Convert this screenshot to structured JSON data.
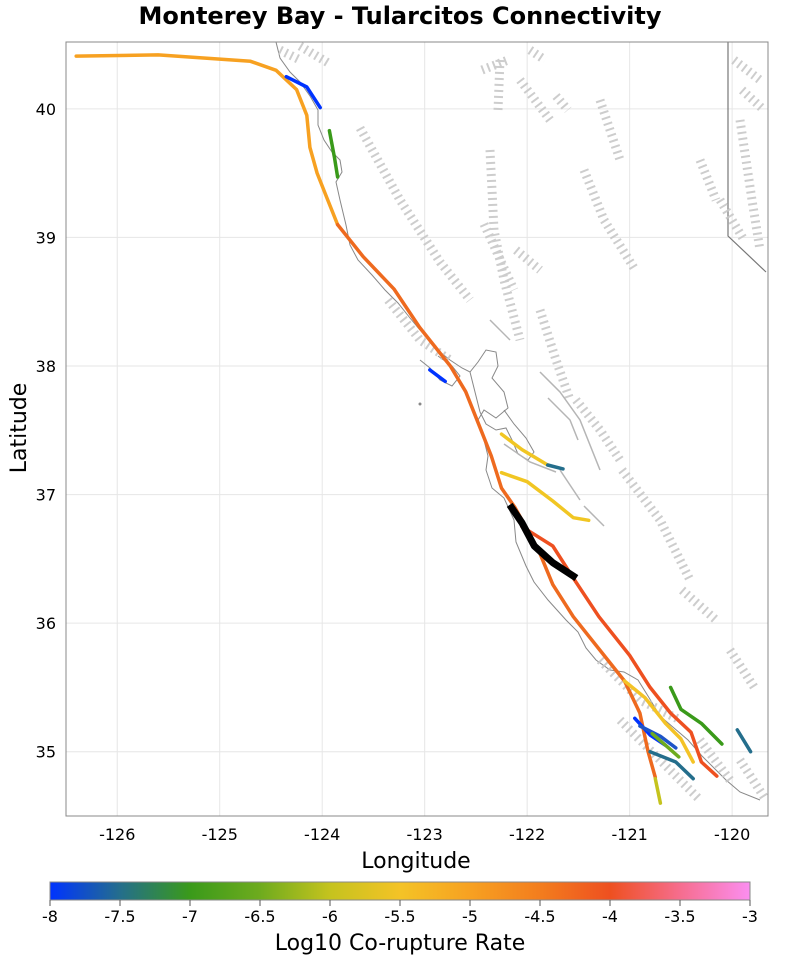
{
  "chart_data": {
    "type": "map",
    "title": "Monterey Bay - Tularcitos Connectivity",
    "xlabel": "Longitude",
    "ylabel": "Latitude",
    "xlim": [
      -126.5,
      -119.65
    ],
    "ylim": [
      34.5,
      40.52
    ],
    "x_ticks": [
      -126,
      -125,
      -124,
      -123,
      -122,
      -121,
      -120
    ],
    "y_ticks": [
      35,
      36,
      37,
      38,
      39,
      40
    ],
    "grid": true,
    "colorbar": {
      "label": "Log10 Co-rupture Rate",
      "range": [
        -8,
        -3
      ],
      "ticks": [
        "-8",
        "-7.5",
        "-7",
        "-6.5",
        "-6",
        "-5.5",
        "-5",
        "-4.5",
        "-4",
        "-3.5",
        "-3"
      ],
      "stops": [
        {
          "value": -8,
          "color": "#0033ff"
        },
        {
          "value": -7.5,
          "color": "#246e8c"
        },
        {
          "value": -7,
          "color": "#3a9a1a"
        },
        {
          "value": -6.5,
          "color": "#6eab1e"
        },
        {
          "value": -6,
          "color": "#c5c31e"
        },
        {
          "value": -5.5,
          "color": "#f4c326"
        },
        {
          "value": -5,
          "color": "#f7a121"
        },
        {
          "value": -4.5,
          "color": "#f37d1e"
        },
        {
          "value": -4,
          "color": "#ee5020"
        },
        {
          "value": -3.5,
          "color": "#f66d8e"
        },
        {
          "value": -3,
          "color": "#fb8ef0"
        }
      ]
    },
    "source_section": {
      "name": "Monterey Bay - Tularcitos",
      "color": "#000000"
    },
    "connected_sections": [
      {
        "log10_rate": -5.0,
        "color": "#f7a121",
        "points": [
          [
            -126.4,
            40.41
          ],
          [
            -125.6,
            40.42
          ],
          [
            -124.7,
            40.37
          ],
          [
            -124.45,
            40.3
          ],
          [
            -124.25,
            40.15
          ],
          [
            -124.15,
            39.95
          ],
          [
            -124.12,
            39.7
          ],
          [
            -124.05,
            39.5
          ],
          [
            -123.95,
            39.3
          ],
          [
            -123.85,
            39.1
          ]
        ]
      },
      {
        "log10_rate": -8.0,
        "color": "#0033ff",
        "points": [
          [
            -124.35,
            40.25
          ],
          [
            -124.15,
            40.17
          ],
          [
            -124.02,
            40.01
          ]
        ]
      },
      {
        "log10_rate": -7.0,
        "color": "#3a9a1a",
        "points": [
          [
            -123.93,
            39.83
          ],
          [
            -123.88,
            39.62
          ],
          [
            -123.85,
            39.47
          ]
        ]
      },
      {
        "log10_rate": -4.5,
        "color": "#ee6a1f",
        "points": [
          [
            -123.85,
            39.1
          ],
          [
            -123.6,
            38.85
          ],
          [
            -123.3,
            38.6
          ],
          [
            -123.05,
            38.3
          ],
          [
            -122.75,
            38.0
          ],
          [
            -122.6,
            37.8
          ],
          [
            -122.45,
            37.5
          ],
          [
            -122.35,
            37.3
          ],
          [
            -122.25,
            37.05
          ],
          [
            -122.12,
            36.9
          ],
          [
            -122.0,
            36.73
          ],
          [
            -121.88,
            36.55
          ],
          [
            -121.75,
            36.3
          ],
          [
            -121.55,
            36.05
          ],
          [
            -121.3,
            35.8
          ],
          [
            -121.05,
            35.55
          ],
          [
            -120.9,
            35.3
          ],
          [
            -120.82,
            35.0
          ],
          [
            -120.75,
            34.8
          ]
        ]
      },
      {
        "log10_rate": -4.0,
        "color": "#ee5020",
        "points": [
          [
            -122.05,
            36.75
          ],
          [
            -121.75,
            36.6
          ],
          [
            -121.55,
            36.35
          ],
          [
            -121.3,
            36.05
          ],
          [
            -121.0,
            35.75
          ],
          [
            -120.8,
            35.5
          ],
          [
            -120.6,
            35.3
          ],
          [
            -120.4,
            35.15
          ],
          [
            -120.3,
            34.92
          ],
          [
            -120.15,
            34.81
          ]
        ]
      },
      {
        "log10_rate": -8.0,
        "color": "#0033ff",
        "points": [
          [
            -122.95,
            37.97
          ],
          [
            -122.8,
            37.88
          ]
        ]
      },
      {
        "log10_rate": -5.5,
        "color": "#f1c623",
        "points": [
          [
            -122.25,
            37.47
          ],
          [
            -122.05,
            37.35
          ],
          [
            -121.8,
            37.23
          ]
        ]
      },
      {
        "log10_rate": -7.5,
        "color": "#246e8c",
        "points": [
          [
            -121.8,
            37.23
          ],
          [
            -121.65,
            37.2
          ]
        ]
      },
      {
        "log10_rate": -5.5,
        "color": "#f1c623",
        "points": [
          [
            -122.25,
            37.17
          ],
          [
            -122.0,
            37.1
          ],
          [
            -121.75,
            36.95
          ],
          [
            -121.55,
            36.82
          ],
          [
            -121.4,
            36.8
          ]
        ]
      },
      {
        "log10_rate": -5.8,
        "color": "#f4c326",
        "points": [
          [
            -121.05,
            35.55
          ],
          [
            -120.85,
            35.42
          ],
          [
            -120.65,
            35.22
          ],
          [
            -120.5,
            35.1
          ],
          [
            -120.38,
            34.92
          ]
        ]
      },
      {
        "log10_rate": -7.0,
        "color": "#3a9a1a",
        "points": [
          [
            -120.6,
            35.5
          ],
          [
            -120.5,
            35.33
          ],
          [
            -120.3,
            35.22
          ],
          [
            -120.1,
            35.06
          ]
        ]
      },
      {
        "log10_rate": -7.5,
        "color": "#246e8c",
        "points": [
          [
            -119.95,
            35.17
          ],
          [
            -119.82,
            35.0
          ]
        ]
      },
      {
        "log10_rate": -8.0,
        "color": "#0033ff",
        "points": [
          [
            -120.95,
            35.26
          ],
          [
            -120.8,
            35.13
          ],
          [
            -120.65,
            35.05
          ]
        ]
      },
      {
        "log10_rate": -7.6,
        "color": "#1f55c8",
        "points": [
          [
            -120.9,
            35.2
          ],
          [
            -120.7,
            35.12
          ],
          [
            -120.55,
            35.03
          ]
        ]
      },
      {
        "log10_rate": -6.5,
        "color": "#6eab1e",
        "points": [
          [
            -120.78,
            35.14
          ],
          [
            -120.62,
            35.03
          ],
          [
            -120.52,
            34.96
          ]
        ]
      },
      {
        "log10_rate": -7.5,
        "color": "#246e8c",
        "points": [
          [
            -120.8,
            35.0
          ],
          [
            -120.55,
            34.92
          ],
          [
            -120.38,
            34.79
          ]
        ]
      },
      {
        "log10_rate": -6.0,
        "color": "#c5c31e",
        "points": [
          [
            -120.75,
            34.79
          ],
          [
            -120.7,
            34.6
          ]
        ]
      }
    ]
  }
}
